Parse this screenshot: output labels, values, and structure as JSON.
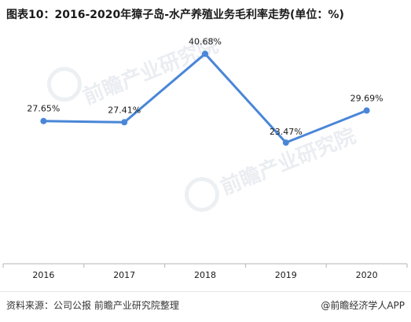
{
  "title": "图表10：2016-2020年獐子岛-水产养殖业务毛利率走势(单位：%)",
  "source": "资料来源：公司公报 前瞻产业研究院整理",
  "brand": "@前瞻经济学人APP",
  "watermark": "前瞻产业研究院",
  "colors": {
    "line": "#4a86d8",
    "axis": "#b5b5b5",
    "text": "#1a1a1a"
  },
  "chart_data": {
    "type": "line",
    "categories": [
      "2016",
      "2017",
      "2018",
      "2019",
      "2020"
    ],
    "values": [
      27.65,
      27.41,
      40.68,
      23.47,
      29.69
    ],
    "data_labels": [
      "27.65%",
      "27.41%",
      "40.68%",
      "23.47%",
      "29.69%"
    ],
    "title": "图表10：2016-2020年獐子岛-水产养殖业务毛利率走势(单位：%)",
    "xlabel": "",
    "ylabel": "",
    "ylim": [
      0,
      45
    ],
    "grid": false,
    "legend": "none"
  }
}
